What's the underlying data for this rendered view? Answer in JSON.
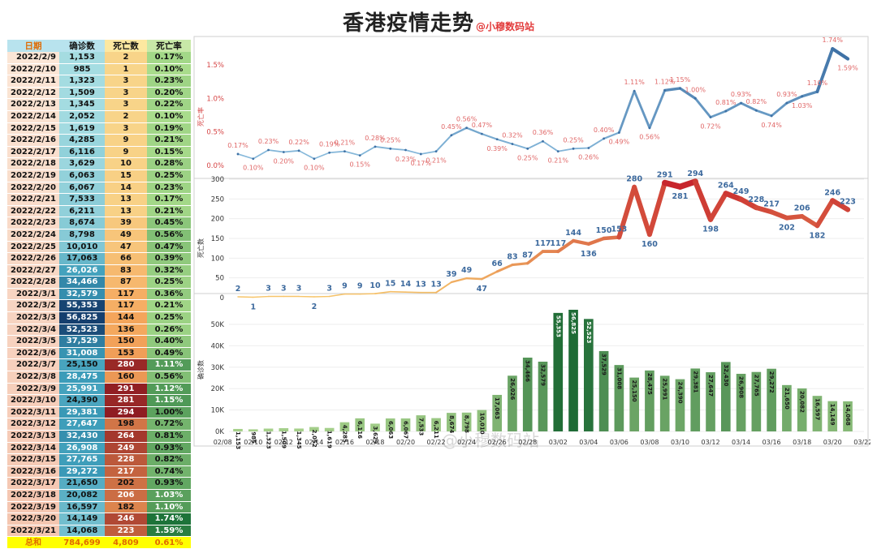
{
  "title": "香港疫情走势",
  "subtitle": "@小穆数码站",
  "watermark": "@小穆数码站",
  "table": {
    "headers": [
      "日期",
      "确诊数",
      "死亡数",
      "死亡率"
    ],
    "total_label": "总和",
    "total": [
      "784,699",
      "4,809",
      "0.61%"
    ]
  },
  "colors": {
    "rate_line": "#8ec0e0",
    "rate_line_dark": "#3f72a6",
    "rate_label": "#e06767",
    "death_low": "#f7c66a",
    "death_high": "#c7242c",
    "death_label": "#3d6a9e",
    "bar_low": "#a8d28c",
    "bar_high": "#1e6b35",
    "total_bg": "#ffff00",
    "total_text": "#e07000"
  },
  "chart_data": [
    {
      "type": "line",
      "ylabel": "死亡率",
      "yticks": [
        "0.0%",
        "0.5%",
        "1.0%",
        "1.5%"
      ],
      "ylim": [
        0,
        1.8
      ],
      "x": [
        "2022/2/9",
        "2022/2/10",
        "2022/2/11",
        "2022/2/12",
        "2022/2/13",
        "2022/2/14",
        "2022/2/15",
        "2022/2/16",
        "2022/2/17",
        "2022/2/18",
        "2022/2/19",
        "2022/2/20",
        "2022/2/21",
        "2022/2/22",
        "2022/2/23",
        "2022/2/24",
        "2022/2/25",
        "2022/2/26",
        "2022/2/27",
        "2022/2/28",
        "2022/3/1",
        "2022/3/2",
        "2022/3/3",
        "2022/3/4",
        "2022/3/5",
        "2022/3/6",
        "2022/3/7",
        "2022/3/8",
        "2022/3/9",
        "2022/3/10",
        "2022/3/11",
        "2022/3/12",
        "2022/3/13",
        "2022/3/14",
        "2022/3/15",
        "2022/3/16",
        "2022/3/17",
        "2022/3/18",
        "2022/3/19",
        "2022/3/20",
        "2022/3/21"
      ],
      "values": [
        0.17,
        0.1,
        0.23,
        0.2,
        0.22,
        0.1,
        0.19,
        0.21,
        0.15,
        0.28,
        0.25,
        0.23,
        0.17,
        0.21,
        0.45,
        0.56,
        0.47,
        0.39,
        0.32,
        0.25,
        0.36,
        0.21,
        0.25,
        0.26,
        0.4,
        0.49,
        1.11,
        0.56,
        1.12,
        1.15,
        1.0,
        0.72,
        0.81,
        0.93,
        0.82,
        0.74,
        0.93,
        1.03,
        1.1,
        1.74,
        1.59
      ],
      "labels": [
        "0.17%",
        "0.10%",
        "0.23%",
        "0.20%",
        "0.22%",
        "0.10%",
        "0.19%",
        "0.21%",
        "0.15%",
        "0.28%",
        "0.25%",
        "0.23%",
        "0.17%",
        "0.21%",
        "0.45%",
        "0.56%",
        "0.47%",
        "0.39%",
        "0.32%",
        "0.25%",
        "0.36%",
        "0.21%",
        "0.25%",
        "0.26%",
        "0.40%",
        "0.49%",
        "1.11%",
        "0.56%",
        "1.12%",
        "1.15%",
        "1.00%",
        "0.72%",
        "0.81%",
        "0.93%",
        "0.82%",
        "0.74%",
        "0.93%",
        "1.03%",
        "1.10%",
        "1.74%",
        "1.59%"
      ]
    },
    {
      "type": "line",
      "ylabel": "死亡数",
      "yticks": [
        "0",
        "50",
        "100",
        "150",
        "200",
        "250",
        "300"
      ],
      "ylim": [
        0,
        310
      ],
      "values": [
        2,
        1,
        3,
        3,
        3,
        2,
        3,
        9,
        9,
        10,
        15,
        14,
        13,
        13,
        39,
        49,
        47,
        66,
        83,
        87,
        117,
        117,
        144,
        136,
        150,
        153,
        280,
        160,
        291,
        281,
        294,
        198,
        264,
        249,
        228,
        217,
        202,
        206,
        182,
        246,
        223
      ],
      "labels": [
        "2",
        "1",
        "3",
        "3",
        "3",
        "2",
        "3",
        "9",
        "9",
        "10",
        "15",
        "14",
        "13",
        "13",
        "39",
        "49",
        "47",
        "66",
        "83",
        "87",
        "117",
        "117",
        "144",
        "136",
        "150",
        "153",
        "280",
        "160",
        "291",
        "281",
        "294",
        "198",
        "264",
        "249",
        "228",
        "217",
        "202",
        "206",
        "182",
        "246",
        "223"
      ]
    },
    {
      "type": "bar",
      "ylabel": "确诊数",
      "yticks": [
        "0K",
        "10K",
        "20K",
        "30K",
        "40K",
        "50K"
      ],
      "ylim": [
        0,
        58000
      ],
      "xticks": [
        "02/08",
        "02/10",
        "02/12",
        "02/14",
        "02/16",
        "02/18",
        "02/20",
        "02/22",
        "02/24",
        "02/26",
        "02/28",
        "03/02",
        "03/04",
        "03/06",
        "03/08",
        "03/10",
        "03/12",
        "03/14",
        "03/16",
        "03/18",
        "03/20",
        "03/22"
      ],
      "values": [
        1153,
        985,
        1323,
        1509,
        1345,
        2052,
        1619,
        4285,
        6116,
        3629,
        6063,
        6067,
        7533,
        6211,
        8674,
        8798,
        10010,
        17063,
        26026,
        34466,
        32579,
        55353,
        56825,
        52523,
        37529,
        31008,
        25150,
        28475,
        25991,
        24390,
        29381,
        27647,
        32430,
        26908,
        27765,
        29272,
        21650,
        20082,
        16597,
        14149,
        14068
      ],
      "labels": [
        "1,153",
        "985",
        "1,323",
        "1,509",
        "1,345",
        "2,052",
        "1,619",
        "4,285",
        "6,116",
        "3,629",
        "6,063",
        "6,067",
        "7,533",
        "6,211",
        "8,674",
        "8,798",
        "10,010",
        "17,063",
        "26,026",
        "34,466",
        "32,579",
        "55,353",
        "56,825",
        "52,523",
        "37,529",
        "31,008",
        "25,150",
        "28,475",
        "25,991",
        "24,390",
        "29,381",
        "27,647",
        "32,430",
        "26,908",
        "27,765",
        "29,272",
        "21,650",
        "20,082",
        "16,597",
        "14,149",
        "14,068"
      ]
    }
  ]
}
